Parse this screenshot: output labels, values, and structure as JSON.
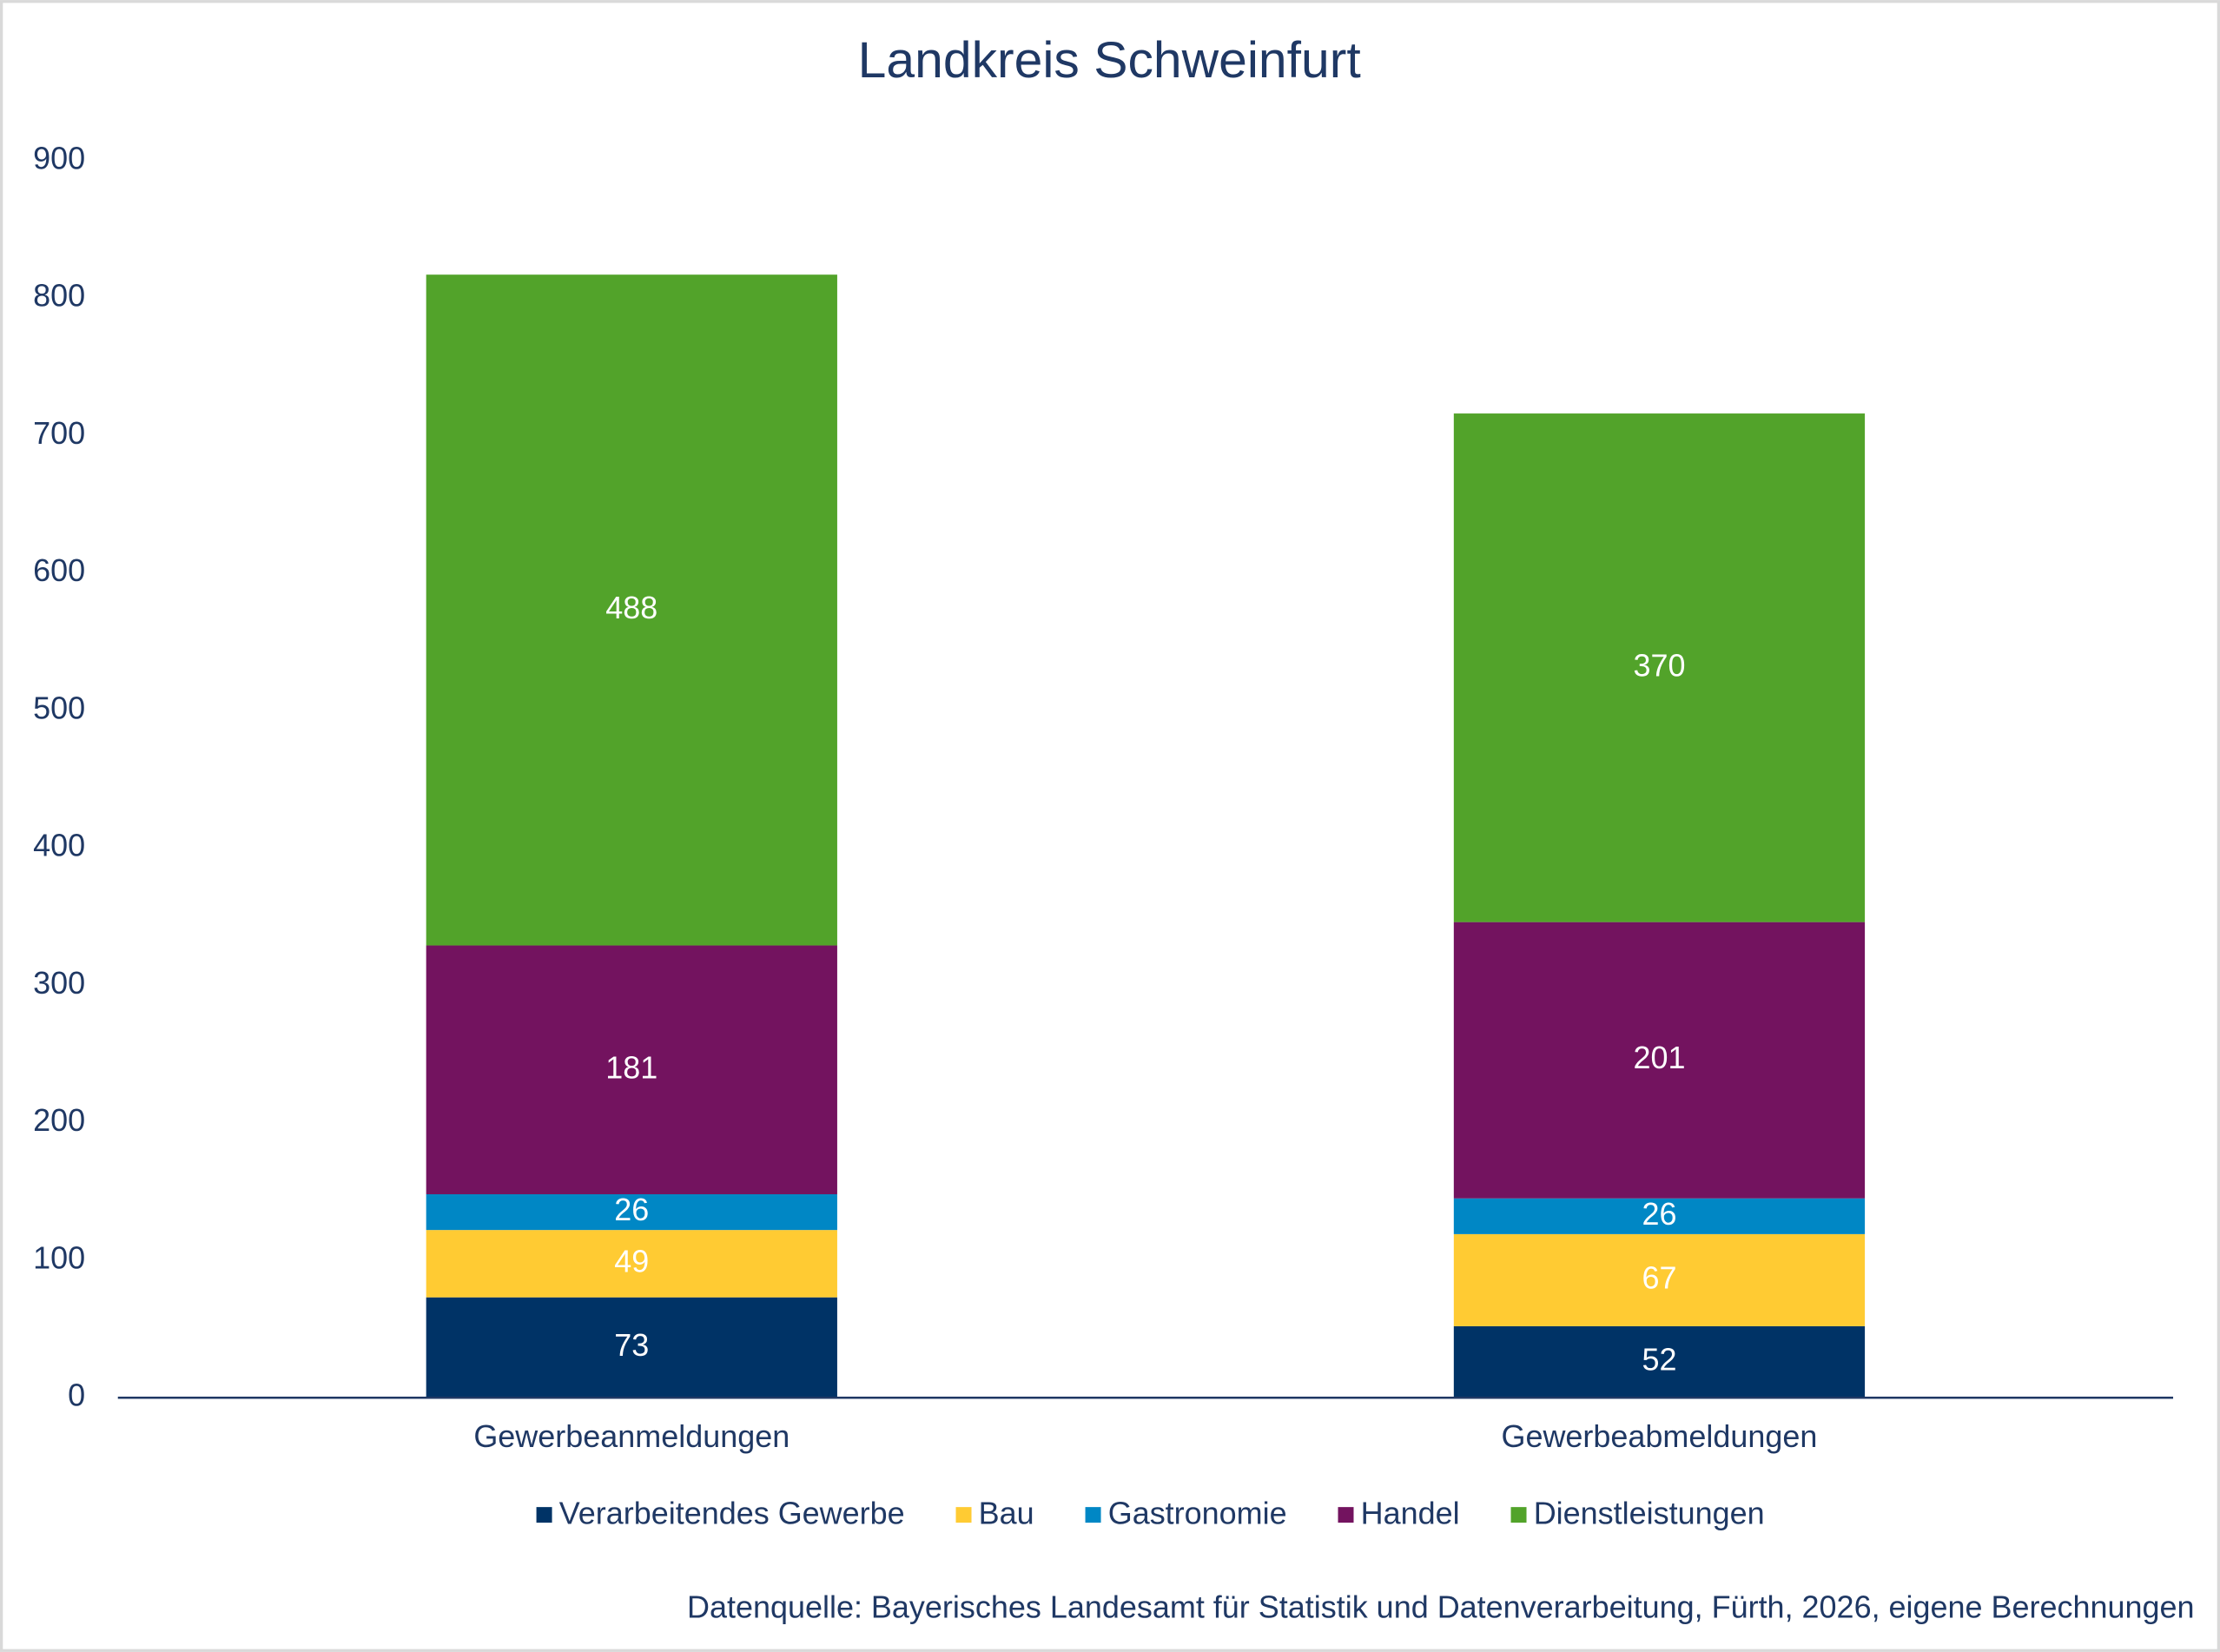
{
  "chart_data": {
    "type": "stacked_bar",
    "title": "Landkreis Schweinfurt",
    "categories": [
      "Gewerbeanmeldungen",
      "Gewerbeabmeldungen"
    ],
    "series": [
      {
        "name": "Verarbeitendes Gewerbe",
        "color": "#003366",
        "values": [
          73,
          52
        ]
      },
      {
        "name": "Bau",
        "color": "#ffcb33",
        "values": [
          49,
          67
        ]
      },
      {
        "name": "Gastronomie",
        "color": "#0087c5",
        "values": [
          26,
          26
        ]
      },
      {
        "name": "Handel",
        "color": "#73135f",
        "values": [
          181,
          201
        ]
      },
      {
        "name": "Dienstleistungen",
        "color": "#52a32a",
        "values": [
          488,
          370
        ]
      }
    ],
    "ylim": [
      0,
      900
    ],
    "yticks": [
      0,
      100,
      200,
      300,
      400,
      500,
      600,
      700,
      800,
      900
    ],
    "grid": false,
    "legend": "bottom",
    "source": "Datenquelle: Bayerisches Landesamt für Statistik und Datenverarbeitung, Fürth, 2026, eigene Berechnungen"
  }
}
